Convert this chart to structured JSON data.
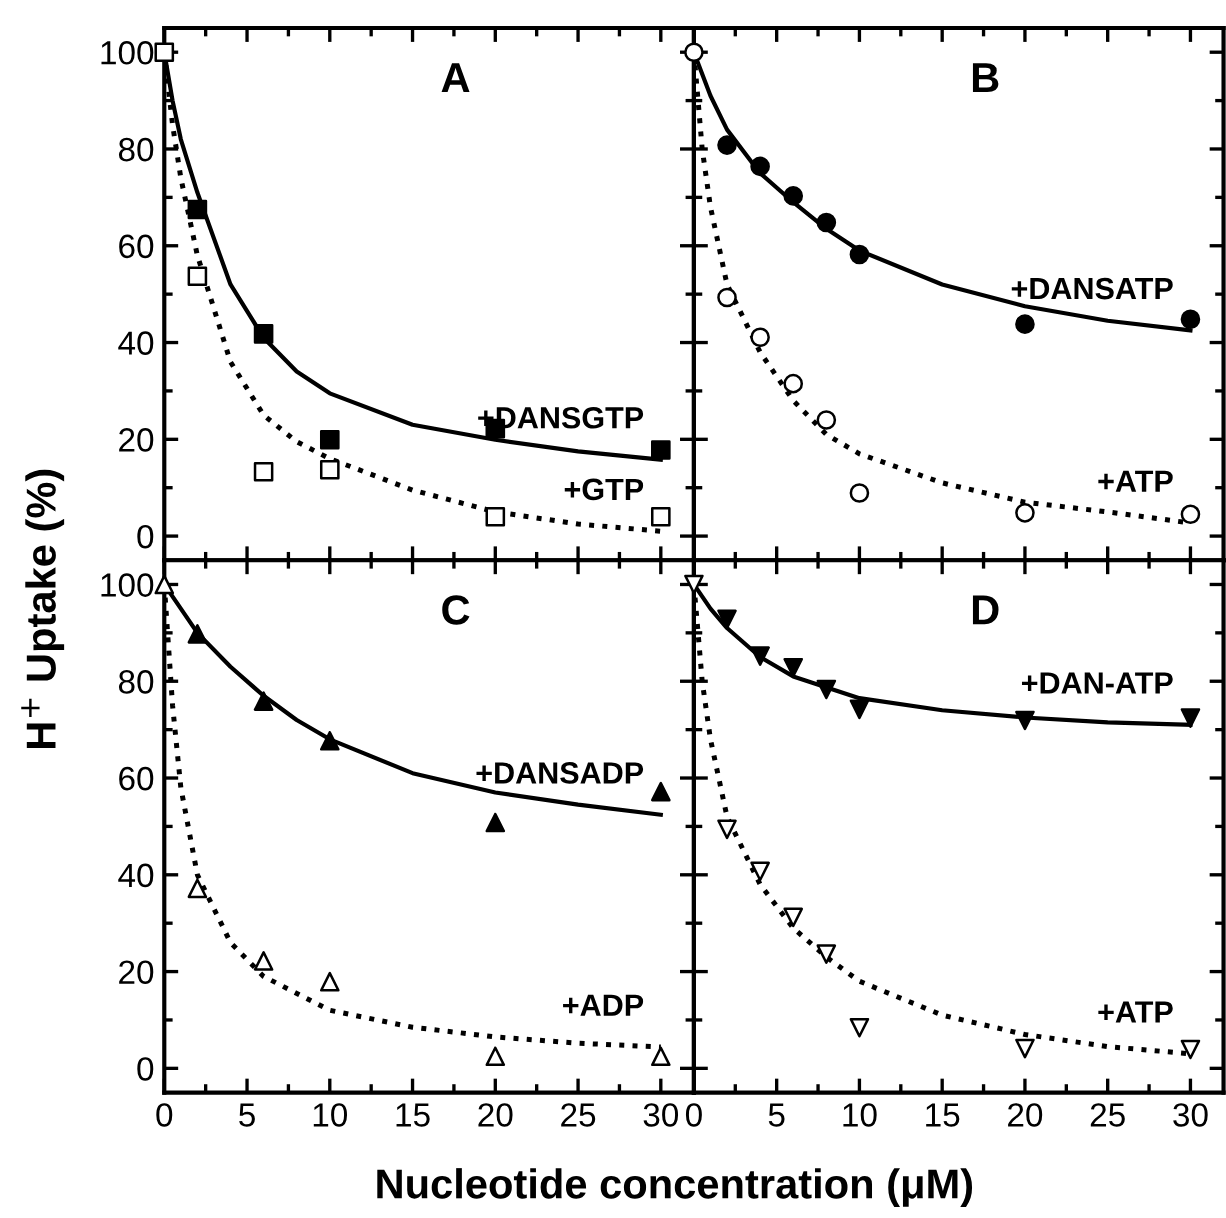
{
  "chart_data": [
    {
      "type": "scatter",
      "title": "A",
      "ylabel": "H$^{+}$ Uptake (%)",
      "xlim": [
        0,
        32
      ],
      "ylim": [
        -5,
        105
      ],
      "xticks": [
        0,
        5,
        10,
        15,
        20,
        25,
        30
      ],
      "yticks": [
        0,
        20,
        40,
        60,
        80,
        100
      ],
      "tick_labels": "y",
      "grid": false,
      "annotations": [
        "+DANSGTP",
        "+GTP"
      ],
      "series": [
        {
          "marker": "square",
          "color": "#000000",
          "x": [
            2,
            6,
            10,
            20,
            30
          ],
          "values": [
            67.5,
            41.8,
            19.9,
            22.2,
            17.8
          ]
        },
        {
          "marker": "square",
          "color": "#ffffff",
          "x": [
            0,
            2,
            6,
            10,
            20,
            30
          ],
          "values": [
            100,
            53.7,
            13.3,
            13.7,
            4,
            4
          ]
        },
        {
          "type": "line",
          "line_style": "solid",
          "color": "#000000",
          "x": [
            0,
            0.5,
            1,
            2,
            4,
            6,
            8,
            10,
            15,
            20,
            25,
            30
          ],
          "values": [
            100,
            90,
            82,
            71,
            52,
            41,
            34,
            29.5,
            23,
            19.9,
            17.5,
            15.8
          ]
        },
        {
          "type": "line",
          "line_style": "dotted",
          "color": "#000000",
          "x": [
            0,
            0.5,
            1,
            2,
            4,
            6,
            8,
            10,
            15,
            20,
            25,
            30
          ],
          "values": [
            100,
            85,
            74,
            58,
            36,
            25,
            19.5,
            16,
            9.5,
            5,
            2.5,
            1
          ]
        }
      ]
    },
    {
      "type": "scatter",
      "title": "B",
      "xlim": [
        0,
        32
      ],
      "ylim": [
        -5,
        105
      ],
      "xticks": [
        0,
        5,
        10,
        15,
        20,
        25,
        30
      ],
      "yticks": [
        0,
        20,
        40,
        60,
        80,
        100
      ],
      "tick_labels": false,
      "grid": false,
      "annotations": [
        "+DANSATP",
        "+ATP"
      ],
      "series": [
        {
          "marker": "circle",
          "color": "#000000",
          "x": [
            2,
            4,
            6,
            8,
            10,
            20,
            30
          ],
          "values": [
            80.8,
            76.4,
            70.3,
            64.8,
            58.2,
            43.8,
            44.8
          ]
        },
        {
          "marker": "circle",
          "color": "#ffffff",
          "x": [
            0,
            2,
            4,
            6,
            8,
            10,
            20,
            30
          ],
          "values": [
            100,
            49.3,
            41.1,
            31.5,
            24,
            8.9,
            4.8,
            4.5
          ]
        },
        {
          "type": "line",
          "line_style": "solid",
          "color": "#000000",
          "x": [
            0,
            1,
            2,
            4,
            6,
            8,
            10,
            15,
            20,
            25,
            30
          ],
          "values": [
            100,
            91,
            84,
            75,
            69,
            63.5,
            59,
            52,
            47.5,
            44.5,
            42.5
          ]
        },
        {
          "type": "line",
          "line_style": "dotted",
          "color": "#000000",
          "x": [
            0,
            0.5,
            1,
            2,
            4,
            6,
            8,
            10,
            15,
            20,
            25,
            30
          ],
          "values": [
            100,
            80,
            68,
            52,
            38,
            28,
            21,
            17,
            11,
            7,
            5,
            2.7
          ]
        }
      ]
    },
    {
      "type": "scatter",
      "title": "C",
      "xlabel": "Nucleotide concentration (μM)",
      "xlim": [
        0,
        32
      ],
      "ylim": [
        -5,
        105
      ],
      "xticks": [
        0,
        5,
        10,
        15,
        20,
        25,
        30
      ],
      "yticks": [
        0,
        20,
        40,
        60,
        80,
        100
      ],
      "grid": false,
      "annotations": [
        "+DANSADP",
        "+ADP"
      ],
      "series": [
        {
          "marker": "triangle",
          "color": "#000000",
          "x": [
            2,
            6,
            10,
            20,
            30
          ],
          "values": [
            89.8,
            75.9,
            67.7,
            50.8,
            57.2
          ]
        },
        {
          "marker": "triangle",
          "color": "#ffffff",
          "x": [
            0,
            2,
            6,
            10,
            20,
            30
          ],
          "values": [
            100,
            37.2,
            22.2,
            17.9,
            2.5,
            2.5
          ]
        },
        {
          "type": "line",
          "line_style": "solid",
          "color": "#000000",
          "x": [
            0,
            1,
            2,
            4,
            6,
            8,
            10,
            15,
            20,
            25,
            30
          ],
          "values": [
            100,
            95,
            90,
            83,
            77,
            72,
            68,
            61,
            57,
            54.5,
            52.4
          ]
        },
        {
          "type": "line",
          "line_style": "dotted",
          "color": "#000000",
          "x": [
            0,
            0.5,
            1,
            2,
            4,
            6,
            10,
            15,
            20,
            25,
            30
          ],
          "values": [
            100,
            75,
            58,
            40,
            26,
            19,
            12,
            8.5,
            6.5,
            5.2,
            4.4
          ]
        }
      ]
    },
    {
      "type": "scatter",
      "title": "D",
      "xlim": [
        0,
        32
      ],
      "ylim": [
        -5,
        105
      ],
      "xticks": [
        0,
        5,
        10,
        15,
        20,
        25,
        30
      ],
      "yticks": [
        0,
        20,
        40,
        60,
        80,
        100
      ],
      "tick_labels": "x",
      "grid": false,
      "annotations": [
        "+DAN-ATP",
        "+ATP"
      ],
      "series": [
        {
          "marker": "triangle_down",
          "color": "#000000",
          "x": [
            2,
            4,
            6,
            8,
            10,
            20,
            30
          ],
          "values": [
            92.8,
            85.2,
            82.8,
            78.3,
            74.2,
            71.9,
            72.4
          ]
        },
        {
          "marker": "triangle_down",
          "color": "#ffffff",
          "x": [
            0,
            2,
            4,
            6,
            8,
            10,
            20,
            30
          ],
          "values": [
            100,
            49.4,
            40.7,
            31.2,
            23.6,
            8.4,
            4.1,
            3.9
          ]
        },
        {
          "type": "line",
          "line_style": "solid",
          "color": "#000000",
          "x": [
            0,
            1,
            2,
            4,
            6,
            10,
            15,
            20,
            25,
            30
          ],
          "values": [
            100,
            95,
            91,
            85,
            81,
            76.5,
            74,
            72.5,
            71.5,
            71
          ]
        },
        {
          "type": "line",
          "line_style": "dotted",
          "color": "#000000",
          "x": [
            0,
            0.5,
            1,
            2,
            4,
            6,
            8,
            10,
            15,
            20,
            25,
            30
          ],
          "values": [
            100,
            80,
            68,
            52,
            38,
            29,
            23,
            18,
            11,
            7,
            4.5,
            3
          ]
        }
      ]
    }
  ]
}
